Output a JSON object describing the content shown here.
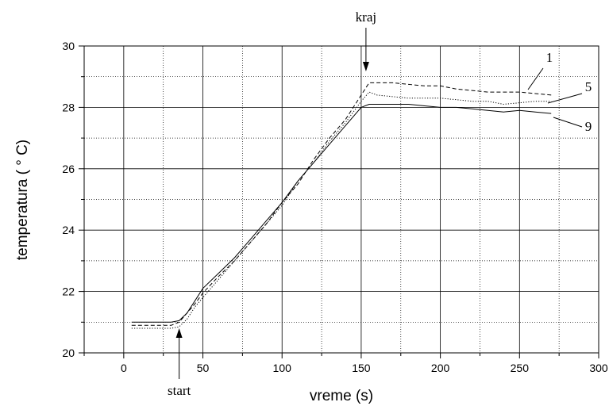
{
  "chart_data": {
    "type": "line",
    "xlabel": "vreme (s)",
    "ylabel": "temperatura ( ° C)",
    "xlim": [
      -25,
      300
    ],
    "ylim": [
      20,
      30
    ],
    "xticks": [
      0,
      50,
      100,
      150,
      200,
      250,
      300
    ],
    "yticks": [
      20,
      22,
      24,
      26,
      28,
      30
    ],
    "grid": true,
    "series": [
      {
        "name": "1",
        "style": "dashed",
        "x": [
          5,
          30,
          35,
          40,
          45,
          50,
          60,
          70,
          80,
          90,
          100,
          110,
          120,
          130,
          140,
          150,
          155,
          160,
          170,
          180,
          190,
          200,
          210,
          220,
          230,
          240,
          250,
          260,
          270
        ],
        "y": [
          20.9,
          20.9,
          21.0,
          21.3,
          21.6,
          21.95,
          22.5,
          23.0,
          23.6,
          24.2,
          24.9,
          25.5,
          26.3,
          27.0,
          27.6,
          28.4,
          28.8,
          28.8,
          28.8,
          28.75,
          28.7,
          28.7,
          28.6,
          28.55,
          28.5,
          28.5,
          28.5,
          28.45,
          28.4
        ]
      },
      {
        "name": "5",
        "style": "dotted",
        "x": [
          5,
          30,
          35,
          40,
          45,
          50,
          60,
          70,
          80,
          90,
          100,
          110,
          120,
          130,
          140,
          150,
          155,
          160,
          170,
          180,
          190,
          200,
          210,
          220,
          230,
          240,
          250,
          260,
          270
        ],
        "y": [
          20.8,
          20.8,
          20.85,
          21.1,
          21.5,
          21.8,
          22.4,
          23.0,
          23.6,
          24.2,
          24.8,
          25.6,
          26.2,
          26.9,
          27.5,
          28.2,
          28.5,
          28.4,
          28.35,
          28.3,
          28.3,
          28.3,
          28.25,
          28.2,
          28.2,
          28.1,
          28.15,
          28.2,
          28.2
        ]
      },
      {
        "name": "9",
        "style": "solid",
        "x": [
          5,
          30,
          35,
          40,
          45,
          50,
          60,
          70,
          80,
          90,
          100,
          110,
          120,
          130,
          140,
          150,
          155,
          160,
          170,
          180,
          190,
          200,
          210,
          220,
          230,
          240,
          250,
          260,
          270
        ],
        "y": [
          21.0,
          21.0,
          21.05,
          21.3,
          21.7,
          22.1,
          22.6,
          23.1,
          23.7,
          24.3,
          24.9,
          25.6,
          26.2,
          26.8,
          27.4,
          28.0,
          28.1,
          28.1,
          28.1,
          28.1,
          28.05,
          28.0,
          28.0,
          27.95,
          27.9,
          27.85,
          27.9,
          27.85,
          27.8
        ]
      }
    ],
    "annotations": [
      {
        "text": "kraj",
        "x": 153,
        "y": 28.8,
        "type": "arrow-down"
      },
      {
        "text": "start",
        "x": 35,
        "y": 20.8,
        "type": "arrow-up"
      }
    ]
  }
}
